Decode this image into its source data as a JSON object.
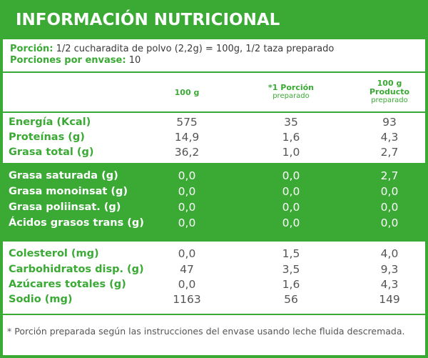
{
  "title": "INFORMACIÓN NUTRICIONAL",
  "portion": {
    "label": "Porción:",
    "value": "1/2 cucharadita de polvo (2,2g) = 100g, 1/2 taza preparado",
    "per_container_label": "Porciones por envase:",
    "per_container_value": "10"
  },
  "headers": {
    "col1": "100 g",
    "col2": "*1 Porción",
    "col2_sub": "preparado",
    "col3": "100 g",
    "col3_line2": "Producto",
    "col3_sub": "preparado"
  },
  "groups": [
    [
      {
        "name": "Energía (Kcal)",
        "v1": "575",
        "v2": "35",
        "v3": "93"
      },
      {
        "name": "Proteínas (g)",
        "v1": "14,9",
        "v2": "1,6",
        "v3": "4,3"
      },
      {
        "name": "Grasa total (g)",
        "v1": "36,2",
        "v2": "1,0",
        "v3": "2,7"
      }
    ],
    [
      {
        "name": "Grasa saturada (g)",
        "v1": "0,0",
        "v2": "0,0",
        "v3": "2,7"
      },
      {
        "name": "Grasa monoinsat (g)",
        "v1": "0,0",
        "v2": "0,0",
        "v3": "0,0"
      },
      {
        "name": "Grasa poliinsat. (g)",
        "v1": "0,0",
        "v2": "0,0",
        "v3": "0,0"
      },
      {
        "name": "Ácidos grasos trans (g)",
        "v1": "0,0",
        "v2": "0,0",
        "v3": "0,0"
      }
    ],
    [
      {
        "name": "Colesterol (mg)",
        "v1": "0,0",
        "v2": "1,5",
        "v3": "4,0"
      },
      {
        "name": "Carbohidratos disp. (g)",
        "v1": "47",
        "v2": "3,5",
        "v3": "9,3"
      },
      {
        "name": "Azúcares totales (g)",
        "v1": "0,0",
        "v2": "1,6",
        "v3": "4,3"
      },
      {
        "name": "Sodio (mg)",
        "v1": "1163",
        "v2": "56",
        "v3": "149"
      }
    ]
  ],
  "footnote": "* Porción preparada según las instrucciones del envase usando leche fluida descremada.",
  "colors": {
    "brand_green": "#3aaa35",
    "text_gray": "#555555",
    "background": "#ffffff"
  }
}
